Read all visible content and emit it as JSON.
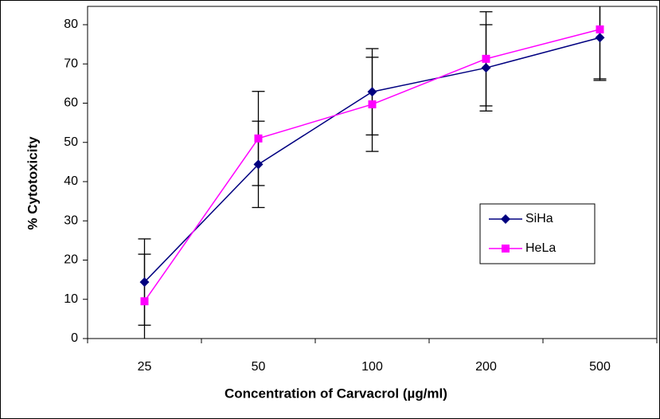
{
  "chart_data": {
    "type": "line",
    "x_label": "Concentration of Carvacrol (µg/ml)",
    "y_label": "% Cytotoxicity",
    "categories": [
      "25",
      "50",
      "100",
      "200",
      "500"
    ],
    "series": [
      {
        "name": "SiHa",
        "color": "#000080",
        "marker": "diamond",
        "values": [
          14.4,
          44.4,
          62.9,
          69,
          76.7
        ],
        "errors": [
          11,
          11,
          11,
          11,
          10.5
        ]
      },
      {
        "name": "HeLa",
        "color": "#ff00ff",
        "marker": "square",
        "values": [
          9.5,
          51,
          59.7,
          71.3,
          78.8
        ],
        "errors": [
          12,
          12,
          12,
          12,
          13
        ]
      }
    ],
    "ylim": [
      0,
      80
    ],
    "yticks": [
      0,
      10,
      20,
      30,
      40,
      50,
      60,
      70,
      80
    ],
    "legend": "right"
  }
}
